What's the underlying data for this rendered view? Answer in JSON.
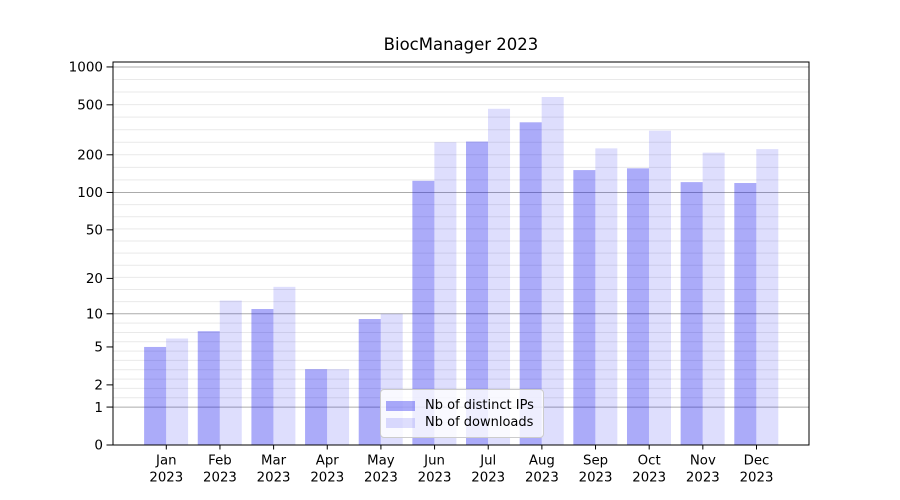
{
  "chart_data": {
    "type": "bar",
    "title": "BiocManager 2023",
    "categories": [
      "Jan 2023",
      "Feb 2023",
      "Mar 2023",
      "Apr 2023",
      "May 2023",
      "Jun 2023",
      "Jul 2023",
      "Aug 2023",
      "Sep 2023",
      "Oct 2023",
      "Nov 2023",
      "Dec 2023"
    ],
    "series": [
      {
        "name": "Nb of distinct IPs",
        "color": "rgba(11,11,238,0.345)",
        "values": [
          5,
          7,
          11,
          3,
          9,
          124,
          255,
          363,
          151,
          156,
          121,
          119
        ]
      },
      {
        "name": "Nb of downloads",
        "color": "rgba(11,11,238,0.135)",
        "values": [
          6,
          13,
          17,
          3,
          10,
          252,
          465,
          577,
          225,
          311,
          208,
          222
        ]
      }
    ],
    "xlabel": "",
    "ylabel": "",
    "y_ticks": [
      0,
      1,
      2,
      5,
      10,
      20,
      50,
      100,
      200,
      500,
      1000
    ],
    "y_scale": "log10(1+value)",
    "ylim": [
      0,
      1095
    ],
    "grid": "horizontal",
    "grid_major_values": [
      1,
      10,
      100,
      1000
    ],
    "legend": {
      "position": "lower-center"
    },
    "colors": {
      "grid_major": "#ababab",
      "grid_minor": "#e9e9e9",
      "axis": "#000000",
      "text": "#000000",
      "background": "#ffffff"
    }
  }
}
